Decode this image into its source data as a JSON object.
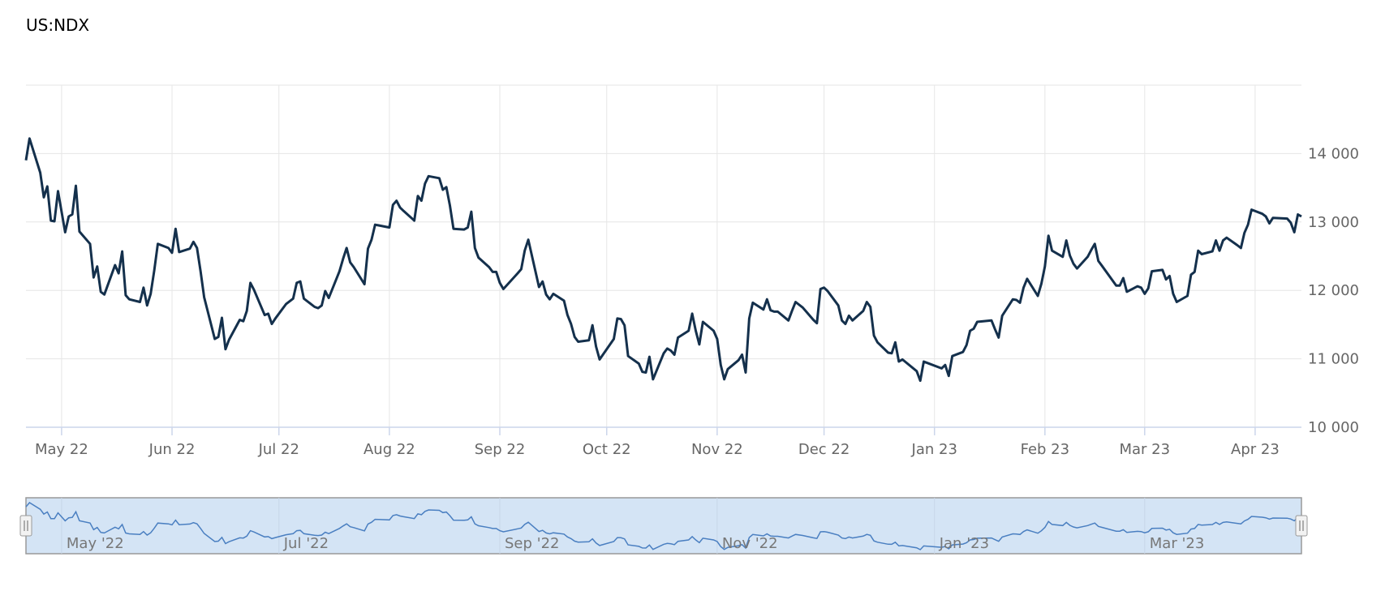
{
  "title": "US:NDX",
  "chart_data": {
    "type": "line",
    "title": "US:NDX",
    "xlabel": "",
    "ylabel": "",
    "ylim": [
      10000,
      15000
    ],
    "xlim": [
      "2022-04-21",
      "2023-04-14"
    ],
    "grid": true,
    "y_ticks": [
      10000,
      11000,
      12000,
      13000,
      14000
    ],
    "y_tick_labels": [
      "10 000",
      "11 000",
      "12 000",
      "13 000",
      "14 000"
    ],
    "x_ticks": [
      {
        "date": "2022-05-01",
        "label": "May 22"
      },
      {
        "date": "2022-06-01",
        "label": "Jun 22"
      },
      {
        "date": "2022-07-01",
        "label": "Jul 22"
      },
      {
        "date": "2022-08-01",
        "label": "Aug 22"
      },
      {
        "date": "2022-09-01",
        "label": "Sep 22"
      },
      {
        "date": "2022-10-01",
        "label": "Oct 22"
      },
      {
        "date": "2022-11-01",
        "label": "Nov 22"
      },
      {
        "date": "2022-12-01",
        "label": "Dec 22"
      },
      {
        "date": "2023-01-01",
        "label": "Jan 23"
      },
      {
        "date": "2023-02-01",
        "label": "Feb 23"
      },
      {
        "date": "2023-03-01",
        "label": "Mar 23"
      },
      {
        "date": "2023-04-01",
        "label": "Apr 23"
      }
    ],
    "series": [
      {
        "color": "#14304c",
        "points": [
          [
            "2022-04-21",
            13900
          ],
          [
            "2022-04-22",
            14220
          ],
          [
            "2022-04-25",
            13720
          ],
          [
            "2022-04-26",
            13360
          ],
          [
            "2022-04-27",
            13520
          ],
          [
            "2022-04-28",
            13020
          ],
          [
            "2022-04-29",
            13010
          ],
          [
            "2022-04-30",
            13450
          ],
          [
            "2022-05-02",
            12850
          ],
          [
            "2022-05-03",
            13080
          ],
          [
            "2022-05-04",
            13110
          ],
          [
            "2022-05-05",
            13530
          ],
          [
            "2022-05-06",
            12860
          ],
          [
            "2022-05-09",
            12680
          ],
          [
            "2022-05-10",
            12190
          ],
          [
            "2022-05-11",
            12350
          ],
          [
            "2022-05-12",
            11980
          ],
          [
            "2022-05-13",
            11940
          ],
          [
            "2022-05-16",
            12370
          ],
          [
            "2022-05-17",
            12250
          ],
          [
            "2022-05-18",
            12570
          ],
          [
            "2022-05-19",
            11930
          ],
          [
            "2022-05-20",
            11870
          ],
          [
            "2022-05-23",
            11830
          ],
          [
            "2022-05-24",
            12040
          ],
          [
            "2022-05-25",
            11780
          ],
          [
            "2022-05-26",
            11950
          ],
          [
            "2022-05-27",
            12290
          ],
          [
            "2022-05-28",
            12680
          ],
          [
            "2022-05-31",
            12620
          ],
          [
            "2022-06-01",
            12550
          ],
          [
            "2022-06-02",
            12900
          ],
          [
            "2022-06-03",
            12560
          ],
          [
            "2022-06-06",
            12610
          ],
          [
            "2022-06-07",
            12710
          ],
          [
            "2022-06-08",
            12620
          ],
          [
            "2022-06-09",
            12280
          ],
          [
            "2022-06-10",
            11900
          ],
          [
            "2022-06-13",
            11290
          ],
          [
            "2022-06-14",
            11320
          ],
          [
            "2022-06-15",
            11600
          ],
          [
            "2022-06-16",
            11140
          ],
          [
            "2022-06-17",
            11280
          ],
          [
            "2022-06-20",
            11570
          ],
          [
            "2022-06-21",
            11550
          ],
          [
            "2022-06-22",
            11700
          ],
          [
            "2022-06-23",
            12110
          ],
          [
            "2022-06-24",
            12010
          ],
          [
            "2022-06-27",
            11640
          ],
          [
            "2022-06-28",
            11660
          ],
          [
            "2022-06-29",
            11510
          ],
          [
            "2022-06-30",
            11590
          ],
          [
            "2022-07-03",
            11800
          ],
          [
            "2022-07-05",
            11880
          ],
          [
            "2022-07-06",
            12110
          ],
          [
            "2022-07-07",
            12130
          ],
          [
            "2022-07-08",
            11880
          ],
          [
            "2022-07-11",
            11760
          ],
          [
            "2022-07-12",
            11740
          ],
          [
            "2022-07-13",
            11780
          ],
          [
            "2022-07-14",
            11990
          ],
          [
            "2022-07-15",
            11890
          ],
          [
            "2022-07-18",
            12280
          ],
          [
            "2022-07-19",
            12460
          ],
          [
            "2022-07-20",
            12620
          ],
          [
            "2022-07-21",
            12410
          ],
          [
            "2022-07-22",
            12340
          ],
          [
            "2022-07-25",
            12090
          ],
          [
            "2022-07-26",
            12610
          ],
          [
            "2022-07-27",
            12740
          ],
          [
            "2022-07-28",
            12960
          ],
          [
            "2022-07-29",
            12950
          ],
          [
            "2022-08-01",
            12920
          ],
          [
            "2022-08-02",
            13250
          ],
          [
            "2022-08-03",
            13310
          ],
          [
            "2022-08-04",
            13210
          ],
          [
            "2022-08-05",
            13160
          ],
          [
            "2022-08-08",
            13020
          ],
          [
            "2022-08-09",
            13380
          ],
          [
            "2022-08-10",
            13310
          ],
          [
            "2022-08-11",
            13560
          ],
          [
            "2022-08-12",
            13670
          ],
          [
            "2022-08-15",
            13640
          ],
          [
            "2022-08-16",
            13470
          ],
          [
            "2022-08-17",
            13510
          ],
          [
            "2022-08-18",
            13240
          ],
          [
            "2022-08-19",
            12900
          ],
          [
            "2022-08-22",
            12890
          ],
          [
            "2022-08-23",
            12920
          ],
          [
            "2022-08-24",
            13150
          ],
          [
            "2022-08-25",
            12620
          ],
          [
            "2022-08-26",
            12480
          ],
          [
            "2022-08-29",
            12340
          ],
          [
            "2022-08-30",
            12270
          ],
          [
            "2022-08-31",
            12270
          ],
          [
            "2022-09-01",
            12110
          ],
          [
            "2022-09-02",
            12020
          ],
          [
            "2022-09-06",
            12250
          ],
          [
            "2022-09-07",
            12310
          ],
          [
            "2022-09-08",
            12580
          ],
          [
            "2022-09-09",
            12740
          ],
          [
            "2022-09-12",
            12050
          ],
          [
            "2022-09-13",
            12130
          ],
          [
            "2022-09-14",
            11940
          ],
          [
            "2022-09-15",
            11870
          ],
          [
            "2022-09-16",
            11950
          ],
          [
            "2022-09-19",
            11850
          ],
          [
            "2022-09-20",
            11640
          ],
          [
            "2022-09-21",
            11510
          ],
          [
            "2022-09-22",
            11320
          ],
          [
            "2022-09-23",
            11250
          ],
          [
            "2022-09-26",
            11270
          ],
          [
            "2022-09-27",
            11490
          ],
          [
            "2022-09-28",
            11180
          ],
          [
            "2022-09-29",
            10990
          ],
          [
            "2022-10-03",
            11290
          ],
          [
            "2022-10-04",
            11590
          ],
          [
            "2022-10-05",
            11580
          ],
          [
            "2022-10-06",
            11490
          ],
          [
            "2022-10-07",
            11040
          ],
          [
            "2022-10-10",
            10930
          ],
          [
            "2022-10-11",
            10810
          ],
          [
            "2022-10-12",
            10800
          ],
          [
            "2022-10-13",
            11030
          ],
          [
            "2022-10-14",
            10700
          ],
          [
            "2022-10-17",
            11080
          ],
          [
            "2022-10-18",
            11150
          ],
          [
            "2022-10-19",
            11120
          ],
          [
            "2022-10-20",
            11060
          ],
          [
            "2022-10-21",
            11310
          ],
          [
            "2022-10-24",
            11410
          ],
          [
            "2022-10-25",
            11660
          ],
          [
            "2022-10-26",
            11410
          ],
          [
            "2022-10-27",
            11210
          ],
          [
            "2022-10-28",
            11540
          ],
          [
            "2022-10-31",
            11410
          ],
          [
            "2022-11-01",
            11290
          ],
          [
            "2022-11-02",
            10910
          ],
          [
            "2022-11-03",
            10700
          ],
          [
            "2022-11-04",
            10850
          ],
          [
            "2022-11-07",
            10980
          ],
          [
            "2022-11-08",
            11060
          ],
          [
            "2022-11-09",
            10800
          ],
          [
            "2022-11-10",
            11590
          ],
          [
            "2022-11-11",
            11820
          ],
          [
            "2022-11-14",
            11720
          ],
          [
            "2022-11-15",
            11870
          ],
          [
            "2022-11-16",
            11710
          ],
          [
            "2022-11-17",
            11690
          ],
          [
            "2022-11-18",
            11690
          ],
          [
            "2022-11-21",
            11560
          ],
          [
            "2022-11-22",
            11700
          ],
          [
            "2022-11-23",
            11830
          ],
          [
            "2022-11-25",
            11750
          ],
          [
            "2022-11-28",
            11570
          ],
          [
            "2022-11-29",
            11520
          ],
          [
            "2022-11-30",
            12020
          ],
          [
            "2022-12-01",
            12040
          ],
          [
            "2022-12-02",
            11990
          ],
          [
            "2022-12-05",
            11780
          ],
          [
            "2022-12-06",
            11560
          ],
          [
            "2022-12-07",
            11510
          ],
          [
            "2022-12-08",
            11630
          ],
          [
            "2022-12-09",
            11560
          ],
          [
            "2022-12-12",
            11700
          ],
          [
            "2022-12-13",
            11830
          ],
          [
            "2022-12-14",
            11760
          ],
          [
            "2022-12-15",
            11340
          ],
          [
            "2022-12-16",
            11240
          ],
          [
            "2022-12-19",
            11090
          ],
          [
            "2022-12-20",
            11080
          ],
          [
            "2022-12-21",
            11240
          ],
          [
            "2022-12-22",
            10960
          ],
          [
            "2022-12-23",
            10990
          ],
          [
            "2022-12-27",
            10820
          ],
          [
            "2022-12-28",
            10680
          ],
          [
            "2022-12-29",
            10960
          ],
          [
            "2022-12-30",
            10940
          ],
          [
            "2023-01-03",
            10860
          ],
          [
            "2023-01-04",
            10910
          ],
          [
            "2023-01-05",
            10750
          ],
          [
            "2023-01-06",
            11040
          ],
          [
            "2023-01-09",
            11100
          ],
          [
            "2023-01-10",
            11200
          ],
          [
            "2023-01-11",
            11410
          ],
          [
            "2023-01-12",
            11440
          ],
          [
            "2023-01-13",
            11540
          ],
          [
            "2023-01-17",
            11560
          ],
          [
            "2023-01-18",
            11430
          ],
          [
            "2023-01-19",
            11310
          ],
          [
            "2023-01-20",
            11630
          ],
          [
            "2023-01-23",
            11870
          ],
          [
            "2023-01-24",
            11860
          ],
          [
            "2023-01-25",
            11820
          ],
          [
            "2023-01-26",
            12040
          ],
          [
            "2023-01-27",
            12170
          ],
          [
            "2023-01-30",
            11920
          ],
          [
            "2023-01-31",
            12100
          ],
          [
            "2023-02-01",
            12350
          ],
          [
            "2023-02-02",
            12800
          ],
          [
            "2023-02-03",
            12580
          ],
          [
            "2023-02-06",
            12490
          ],
          [
            "2023-02-07",
            12730
          ],
          [
            "2023-02-08",
            12510
          ],
          [
            "2023-02-09",
            12390
          ],
          [
            "2023-02-10",
            12320
          ],
          [
            "2023-02-13",
            12490
          ],
          [
            "2023-02-14",
            12590
          ],
          [
            "2023-02-15",
            12680
          ],
          [
            "2023-02-16",
            12430
          ],
          [
            "2023-02-17",
            12360
          ],
          [
            "2023-02-21",
            12070
          ],
          [
            "2023-02-22",
            12070
          ],
          [
            "2023-02-23",
            12180
          ],
          [
            "2023-02-24",
            11980
          ],
          [
            "2023-02-27",
            12060
          ],
          [
            "2023-02-28",
            12040
          ],
          [
            "2023-03-01",
            11950
          ],
          [
            "2023-03-02",
            12030
          ],
          [
            "2023-03-03",
            12280
          ],
          [
            "2023-03-06",
            12300
          ],
          [
            "2023-03-07",
            12160
          ],
          [
            "2023-03-08",
            12210
          ],
          [
            "2023-03-09",
            11950
          ],
          [
            "2023-03-10",
            11830
          ],
          [
            "2023-03-13",
            11920
          ],
          [
            "2023-03-14",
            12230
          ],
          [
            "2023-03-15",
            12270
          ],
          [
            "2023-03-16",
            12580
          ],
          [
            "2023-03-17",
            12530
          ],
          [
            "2023-03-20",
            12570
          ],
          [
            "2023-03-21",
            12730
          ],
          [
            "2023-03-22",
            12580
          ],
          [
            "2023-03-23",
            12730
          ],
          [
            "2023-03-24",
            12770
          ],
          [
            "2023-03-27",
            12660
          ],
          [
            "2023-03-28",
            12620
          ],
          [
            "2023-03-29",
            12840
          ],
          [
            "2023-03-30",
            12960
          ],
          [
            "2023-03-31",
            13180
          ],
          [
            "2023-04-03",
            13120
          ],
          [
            "2023-04-04",
            13080
          ],
          [
            "2023-04-05",
            12980
          ],
          [
            "2023-04-06",
            13060
          ],
          [
            "2023-04-10",
            13050
          ],
          [
            "2023-04-11",
            12990
          ],
          [
            "2023-04-12",
            12850
          ],
          [
            "2023-04-13",
            13110
          ],
          [
            "2023-04-14",
            13080
          ]
        ]
      }
    ]
  },
  "navigator": {
    "labels": [
      {
        "date": "2022-05-01",
        "label": "May '22"
      },
      {
        "date": "2022-07-01",
        "label": "Jul '22"
      },
      {
        "date": "2022-09-01",
        "label": "Sep '22"
      },
      {
        "date": "2022-11-01",
        "label": "Nov '22"
      },
      {
        "date": "2023-01-01",
        "label": "Jan '23"
      },
      {
        "date": "2023-03-01",
        "label": "Mar '23"
      }
    ],
    "fill_color": "#d4e4f5",
    "line_color": "#4a7fc1"
  }
}
